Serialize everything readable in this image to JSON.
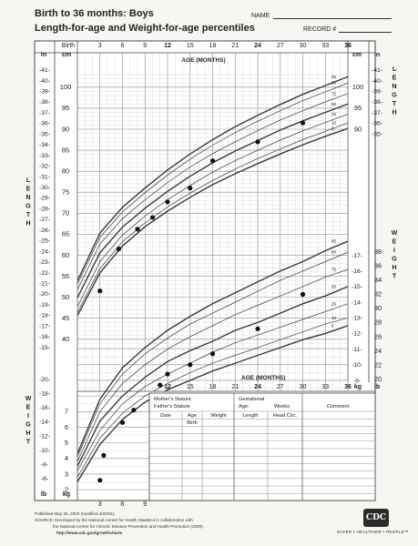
{
  "header": {
    "title": "Birth to 36 months: Boys",
    "subtitle": "Length-for-age and Weight-for-age percentiles",
    "name_label": "NAME",
    "record_label": "RECORD #"
  },
  "table": {
    "mother_stature": "Mother's Stature",
    "father_stature": "Father's Stature",
    "gestational": "Gestational",
    "age_label": "Age:",
    "weeks_label": "Weeks",
    "comment": "Comment",
    "col_date": "Date",
    "col_age": "Age",
    "col_weight": "Weight",
    "col_length": "Length",
    "col_head": "Head  Circ.",
    "first_row": "Birth"
  },
  "footer": {
    "line1": "Published May 30, 2000 (modified 4/20/01).",
    "line2": "SOURCE: Developed by the National Center for Health Statistics in collaboration with",
    "line3": "the National Center for Chronic Disease Prevention and Health Promotion (2000).",
    "line4": "http://www.cdc.gov/growthcharts",
    "tagline": "SAFER • HEALTHIER • PEOPLE™"
  },
  "logo_text": "CDC",
  "colors": {
    "curve": "#3a3a3a",
    "grid": "#8a8a8a",
    "minor_grid": "#c8c8c4",
    "marker": "#111111"
  },
  "chart_data": [
    {
      "type": "line",
      "title": "Length-for-age percentiles",
      "xlabel": "AGE (MONTHS)",
      "ylabel": "LENGTH",
      "x_ticks": [
        "Birth",
        "3",
        "6",
        "9",
        "12",
        "15",
        "18",
        "21",
        "24",
        "27",
        "30",
        "33",
        "36"
      ],
      "x_range": [
        0,
        36
      ],
      "y_units": [
        "cm",
        "in"
      ],
      "y_range_cm": [
        38,
        103
      ],
      "y_ticks_cm": [
        40,
        45,
        50,
        55,
        60,
        65,
        70,
        75,
        80,
        85,
        90,
        95,
        100
      ],
      "y_ticks_in": [
        15,
        16,
        17,
        18,
        19,
        20,
        21,
        22,
        23,
        24,
        25,
        26,
        27,
        28,
        29,
        30,
        31,
        32,
        33,
        34,
        35,
        36,
        37,
        38,
        39,
        40,
        41
      ],
      "right_y_ticks_cm": [
        90,
        95,
        100
      ],
      "right_y_ticks_in": [
        35,
        36,
        37,
        38,
        39,
        40,
        41
      ],
      "percentile_labels": [
        "5",
        "10",
        "25",
        "50",
        "75",
        "90",
        "95"
      ],
      "x": [
        0,
        3,
        6,
        9,
        12,
        15,
        18,
        21,
        24,
        27,
        30,
        33,
        36
      ],
      "series": [
        {
          "name": "5",
          "values": [
            45.6,
            55.8,
            62.2,
            66.8,
            70.5,
            73.8,
            76.8,
            79.4,
            81.8,
            84.1,
            86.3,
            88.3,
            90.2
          ]
        },
        {
          "name": "10",
          "values": [
            46.4,
            56.8,
            63.2,
            67.7,
            71.5,
            74.8,
            77.8,
            80.5,
            83.0,
            85.3,
            87.5,
            89.5,
            91.5
          ]
        },
        {
          "name": "25",
          "values": [
            47.7,
            58.5,
            64.8,
            69.3,
            73.2,
            76.6,
            79.8,
            82.5,
            85.0,
            87.4,
            89.6,
            91.6,
            93.6
          ]
        },
        {
          "name": "50",
          "values": [
            49.9,
            60.6,
            66.7,
            71.2,
            75.2,
            78.8,
            82.0,
            84.8,
            87.3,
            89.8,
            92.0,
            94.0,
            96.0
          ]
        },
        {
          "name": "75",
          "values": [
            51.8,
            62.7,
            68.7,
            73.2,
            77.3,
            81.0,
            84.2,
            87.0,
            89.7,
            92.2,
            94.4,
            96.5,
            98.5
          ]
        },
        {
          "name": "90",
          "values": [
            53.1,
            64.3,
            70.3,
            74.9,
            79.1,
            82.9,
            86.2,
            89.2,
            91.9,
            94.4,
            96.8,
            98.9,
            101.0
          ]
        },
        {
          "name": "95",
          "values": [
            53.9,
            65.3,
            71.4,
            76.0,
            80.3,
            84.1,
            87.5,
            90.6,
            93.3,
            95.9,
            98.3,
            100.4,
            102.5
          ]
        }
      ],
      "plotted_points": [
        {
          "x": 3,
          "y": 51.5
        },
        {
          "x": 5.5,
          "y": 61.5
        },
        {
          "x": 8,
          "y": 66.2
        },
        {
          "x": 10,
          "y": 69.0
        },
        {
          "x": 12,
          "y": 72.7
        },
        {
          "x": 15,
          "y": 76.0
        },
        {
          "x": 18,
          "y": 82.5
        },
        {
          "x": 24,
          "y": 87.0
        },
        {
          "x": 30,
          "y": 91.5
        }
      ]
    },
    {
      "type": "line",
      "title": "Weight-for-age percentiles",
      "xlabel": "AGE (MONTHS)",
      "ylabel": "WEIGHT",
      "x_ticks": [
        "Birth",
        "3",
        "6",
        "9",
        "12",
        "15",
        "18",
        "21",
        "24",
        "27",
        "30",
        "33",
        "36"
      ],
      "x_range": [
        0,
        36
      ],
      "y_units": [
        "kg",
        "lb"
      ],
      "y_range_kg": [
        1.6,
        18.2
      ],
      "y_ticks_kg": [
        2,
        3,
        4,
        5,
        6,
        7,
        8,
        9,
        10,
        11,
        12,
        13,
        14,
        15,
        16,
        17
      ],
      "y_ticks_lb": [
        4,
        6,
        8,
        10,
        12,
        14,
        16,
        18,
        20,
        22,
        24,
        26,
        28,
        30,
        32,
        34,
        36,
        38
      ],
      "percentile_labels": [
        "5",
        "10",
        "25",
        "50",
        "75",
        "90",
        "95"
      ],
      "x": [
        0,
        3,
        6,
        9,
        12,
        15,
        18,
        21,
        24,
        27,
        30,
        33,
        36
      ],
      "series": [
        {
          "name": "5",
          "values": [
            2.5,
            4.9,
            6.5,
            7.6,
            8.4,
            9.0,
            9.6,
            10.1,
            10.6,
            11.1,
            11.6,
            12.0,
            12.5
          ]
        },
        {
          "name": "10",
          "values": [
            2.8,
            5.3,
            6.9,
            8.0,
            8.8,
            9.5,
            10.1,
            10.6,
            11.1,
            11.6,
            12.1,
            12.6,
            13.0
          ]
        },
        {
          "name": "25",
          "values": [
            3.2,
            5.8,
            7.5,
            8.6,
            9.4,
            10.1,
            10.8,
            11.4,
            11.9,
            12.4,
            12.9,
            13.4,
            13.9
          ]
        },
        {
          "name": "50",
          "values": [
            3.5,
            6.4,
            8.0,
            9.2,
            10.2,
            10.9,
            11.5,
            12.2,
            12.7,
            13.3,
            13.9,
            14.4,
            15.0
          ]
        },
        {
          "name": "75",
          "values": [
            3.8,
            7.0,
            8.8,
            10.0,
            11.0,
            11.8,
            12.5,
            13.2,
            13.8,
            14.4,
            15.0,
            15.6,
            16.1
          ]
        },
        {
          "name": "90",
          "values": [
            4.1,
            7.5,
            9.4,
            10.7,
            11.7,
            12.6,
            13.3,
            14.0,
            14.7,
            15.4,
            16.0,
            16.6,
            17.2
          ]
        },
        {
          "name": "95",
          "values": [
            4.3,
            7.8,
            9.8,
            11.1,
            12.2,
            13.1,
            13.9,
            14.6,
            15.3,
            16.0,
            16.6,
            17.3,
            17.9
          ]
        }
      ],
      "plotted_points": [
        {
          "x": 3,
          "y": 2.6
        },
        {
          "x": 3.5,
          "y": 4.2
        },
        {
          "x": 6,
          "y": 6.3
        },
        {
          "x": 7.5,
          "y": 7.1
        },
        {
          "x": 11,
          "y": 8.7
        },
        {
          "x": 12,
          "y": 9.4
        },
        {
          "x": 15,
          "y": 10.0
        },
        {
          "x": 18,
          "y": 10.7
        },
        {
          "x": 24,
          "y": 12.3
        },
        {
          "x": 30,
          "y": 14.5
        }
      ]
    }
  ]
}
